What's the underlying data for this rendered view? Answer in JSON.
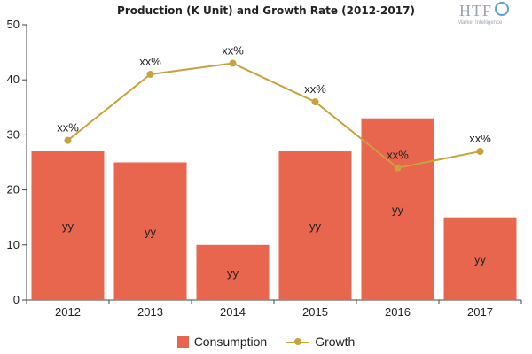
{
  "chart_data": {
    "type": "bar",
    "title": "Production (K Unit) and Growth Rate (2012-2017)",
    "categories": [
      "2012",
      "2013",
      "2014",
      "2015",
      "2016",
      "2017"
    ],
    "series": [
      {
        "name": "Consumption",
        "type": "bar",
        "color": "#e8654e",
        "values": [
          27,
          25,
          10,
          27,
          33,
          15
        ],
        "data_labels": [
          "yy",
          "yy",
          "yy",
          "yy",
          "yy",
          "yy"
        ]
      },
      {
        "name": "Growth",
        "type": "line",
        "color": "#c8a23c",
        "values": [
          29,
          41,
          43,
          36,
          24,
          27
        ],
        "data_labels": [
          "xx%",
          "xx%",
          "xx%",
          "xx%",
          "xx%",
          "xx%"
        ]
      }
    ],
    "ylim": [
      0,
      50
    ],
    "yticks": [
      "0",
      "10",
      "20",
      "30",
      "40",
      "50"
    ],
    "xlabel": "",
    "ylabel": "",
    "grid": false,
    "legend_position": "bottom"
  },
  "logo": {
    "brand": "HTF",
    "tagline": "Market Intelligence"
  }
}
